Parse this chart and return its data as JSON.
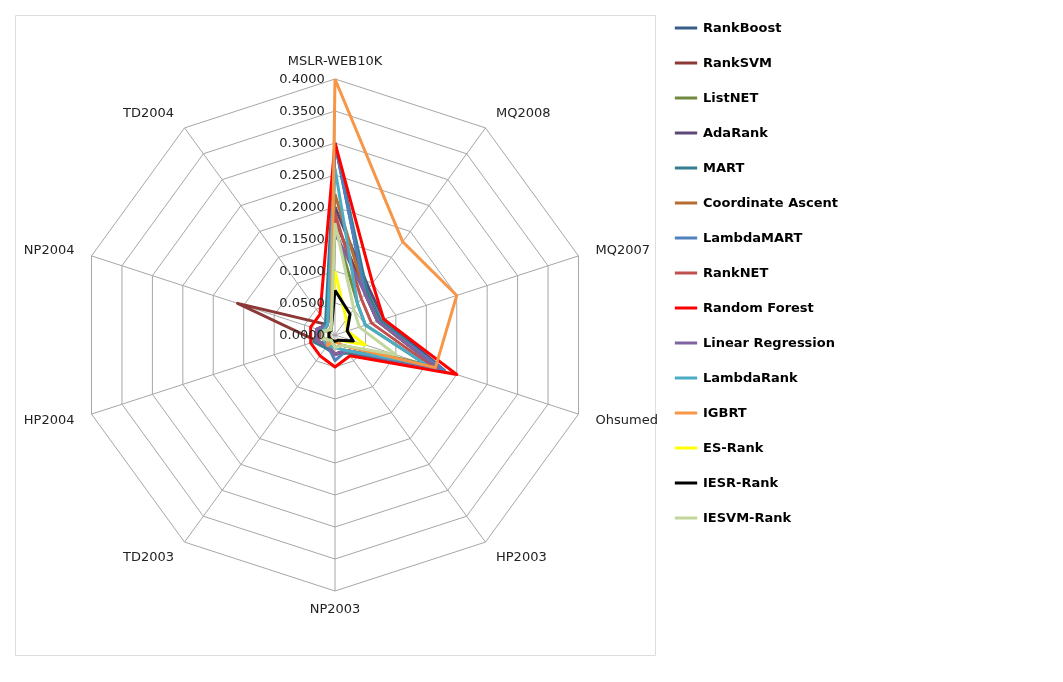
{
  "chart_data": {
    "type": "radar",
    "categories": [
      "MSLR-WEB10K",
      "MQ2008",
      "MQ2007",
      "Ohsumed",
      "HP2003",
      "NP2003",
      "TD2003",
      "HP2004",
      "NP2004",
      "TD2004"
    ],
    "ylim": [
      0,
      0.4
    ],
    "yticks": [
      {
        "value": 0,
        "label": "0.0000"
      },
      {
        "value": 0.05,
        "label": "0.0500"
      },
      {
        "value": 0.1,
        "label": "0.1000"
      },
      {
        "value": 0.15,
        "label": "0.1500"
      },
      {
        "value": 0.2,
        "label": "0.2000"
      },
      {
        "value": 0.25,
        "label": "0.2500"
      },
      {
        "value": 0.3,
        "label": "0.3000"
      },
      {
        "value": 0.35,
        "label": "0.3500"
      },
      {
        "value": 0.4,
        "label": "0.4000"
      }
    ],
    "grid": true,
    "legend": "right",
    "series": [
      {
        "name": "RankBoost",
        "color": "#385d8a",
        "values": [
          0.3,
          0.08,
          0.07,
          0.17,
          0.03,
          0.03,
          0.02,
          0.03,
          0.02,
          0.02
        ]
      },
      {
        "name": "RankSVM",
        "color": "#8c3836",
        "values": [
          0.18,
          0.08,
          0.07,
          0.17,
          0.03,
          0.03,
          0.02,
          0.03,
          0.16,
          0.02
        ]
      },
      {
        "name": "ListNET",
        "color": "#71893f",
        "values": [
          0.17,
          0.06,
          0.05,
          0.15,
          0.02,
          0.02,
          0.01,
          0.02,
          0.02,
          0.01
        ]
      },
      {
        "name": "AdaRank",
        "color": "#5c4776",
        "values": [
          0.2,
          0.09,
          0.08,
          0.18,
          0.03,
          0.03,
          0.02,
          0.03,
          0.03,
          0.02
        ]
      },
      {
        "name": "MART",
        "color": "#357d91",
        "values": [
          0.3,
          0.085,
          0.075,
          0.175,
          0.035,
          0.03,
          0.025,
          0.035,
          0.025,
          0.025
        ]
      },
      {
        "name": "Coordinate Ascent",
        "color": "#b66d31",
        "values": [
          0.22,
          0.08,
          0.07,
          0.17,
          0.03,
          0.03,
          0.02,
          0.03,
          0.02,
          0.02
        ]
      },
      {
        "name": "LambdaMART",
        "color": "#4f81bd",
        "values": [
          0.3,
          0.08,
          0.07,
          0.18,
          0.03,
          0.04,
          0.02,
          0.03,
          0.02,
          0.02
        ]
      },
      {
        "name": "RankNET",
        "color": "#c0504d",
        "values": [
          0.19,
          0.07,
          0.06,
          0.16,
          0.03,
          0.03,
          0.02,
          0.03,
          0.02,
          0.02
        ]
      },
      {
        "name": "Random Forest",
        "color": "#ff0000",
        "values": [
          0.3,
          0.1,
          0.08,
          0.2,
          0.04,
          0.05,
          0.04,
          0.04,
          0.04,
          0.04
        ]
      },
      {
        "name": "Linear Regression",
        "color": "#8064a2",
        "values": [
          0.16,
          0.08,
          0.07,
          0.17,
          0.03,
          0.03,
          0.02,
          0.03,
          0.03,
          0.02
        ]
      },
      {
        "name": "LambdaRank",
        "color": "#4bacc6",
        "values": [
          0.26,
          0.06,
          0.05,
          0.15,
          0.03,
          0.02,
          0.02,
          0.02,
          0.02,
          0.02
        ]
      },
      {
        "name": "IGBRT",
        "color": "#f79646",
        "values": [
          0.4,
          0.18,
          0.2,
          0.165,
          0.02,
          0.01,
          0.02,
          0.01,
          0.01,
          0.01
        ]
      },
      {
        "name": "ES-Rank",
        "color": "#ffff00",
        "values": [
          0.1,
          0.03,
          0.02,
          0.05,
          0.01,
          0.01,
          0.01,
          0.01,
          0.01,
          0.01
        ]
      },
      {
        "name": "IESR-Rank",
        "color": "#000000",
        "values": [
          0.07,
          0.04,
          0.02,
          0.03,
          0.01,
          0.01,
          0.01,
          0.01,
          0.01,
          0.01
        ]
      },
      {
        "name": "IESVM-Rank",
        "color": "#c3d69b",
        "values": [
          0.175,
          0.05,
          0.04,
          0.1,
          0.02,
          0.02,
          0.01,
          0.02,
          0.02,
          0.01
        ]
      }
    ]
  }
}
